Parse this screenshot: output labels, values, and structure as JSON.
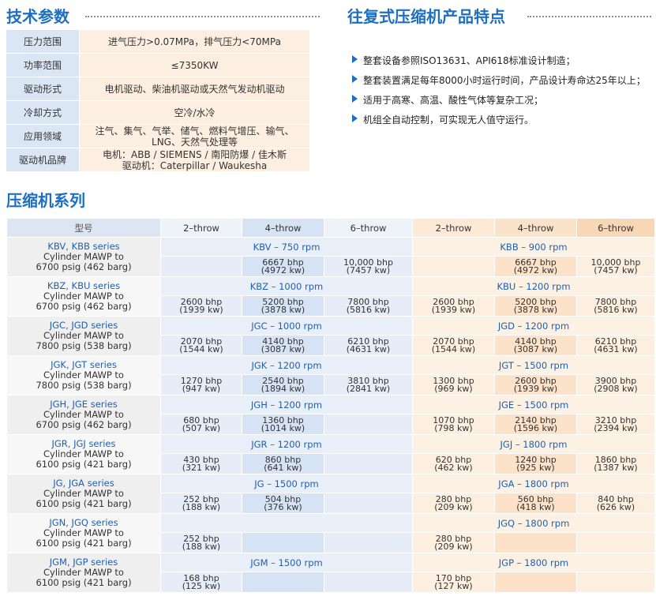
{
  "spec": {
    "title": "技术参数",
    "rows": [
      [
        "压力范围",
        [
          "进气压力>0.07MPa，排气压力<70MPa"
        ]
      ],
      [
        "功率范围",
        [
          "≤7350KW"
        ]
      ],
      [
        "驱动形式",
        [
          "电机驱动、柴油机驱动或天然气发动机驱动"
        ]
      ],
      [
        "冷却方式",
        [
          "空冷/水冷"
        ]
      ],
      [
        "应用领域",
        [
          "注气、集气、气举、储气、燃料气增压、输气、",
          "LNG、天然气处理等"
        ]
      ],
      [
        "驱动机品牌",
        [
          "电机：ABB / SIEMENS / 南阳防爆 / 佳木斯",
          "驱动机：Caterpillar / Waukesha"
        ]
      ]
    ]
  },
  "features": {
    "title": "往复式压缩机产品特点",
    "items": [
      "整套设备参照ISO13631、API618标准设计制造；",
      "整套装置满足每年8000小时运行时间，产品设计寿命达25年以上；",
      "适用于高寒、高温、酸性气体等复杂工况；",
      "机组全自动控制，可实现无人值守运行。"
    ]
  },
  "series": {
    "title": "压缩机系列",
    "header": [
      "型号",
      "2–throw",
      "4–throw",
      "6–throw",
      "2–throw",
      "4–throw",
      "6–throw"
    ],
    "rows": [
      {
        "name": [
          "KBV, KBB series",
          "Cylinder MAWP to",
          "6700 psig (462 barg)"
        ],
        "left": "KBV – 750 rpm",
        "right": "KBB – 900 rpm",
        "cells": [
          null,
          [
            "6667 bhp",
            "(4972 kw)"
          ],
          [
            "10,000 bhp",
            "(7457 kw)"
          ],
          null,
          [
            "6667 bhp",
            "(4972 kw)"
          ],
          [
            "10,000 bhp",
            "(7457 kw)"
          ]
        ]
      },
      {
        "name": [
          "KBZ, KBU series",
          "Cylinder MAWP to",
          "6700 psig (462 barg)"
        ],
        "left": "KBZ – 1000 rpm",
        "right": "KBU – 1200 rpm",
        "cells": [
          [
            "2600 bhp",
            "(1939 kw)"
          ],
          [
            "5200 bhp",
            "(3878 kw)"
          ],
          [
            "7800 bhp",
            "(5816 kw)"
          ],
          [
            "2600 bhp",
            "(1939 kw)"
          ],
          [
            "5200 bhp",
            "(3878 kw)"
          ],
          [
            "7800 bhp",
            "(5816 kw)"
          ]
        ]
      },
      {
        "name": [
          "JGC, JGD series",
          "Cylinder MAWP to",
          "7800 psig (538 barg)"
        ],
        "left": "JGC – 1000 rpm",
        "right": "JGD – 1200 rpm",
        "cells": [
          [
            "2070 bhp",
            "(1544 kw)"
          ],
          [
            "4140 bhp",
            "(3087 kw)"
          ],
          [
            "6210 bhp",
            "(4631 kw)"
          ],
          [
            "2070 bhp",
            "(1544 kw)"
          ],
          [
            "4140 bhp",
            "(3087 kw)"
          ],
          [
            "6210 bhp",
            "(4631 kw)"
          ]
        ]
      },
      {
        "name": [
          "JGK, JGT series",
          "Cylinder MAWP to",
          "7800 psig (538 barg)"
        ],
        "left": "JGK – 1200 rpm",
        "right": "JGT – 1500 rpm",
        "cells": [
          [
            "1270 bhp",
            "(947 kw)"
          ],
          [
            "2540 bhp",
            "(1894 kw)"
          ],
          [
            "3810 bhp",
            "(2841 kw)"
          ],
          [
            "1300 bhp",
            "(969 kw)"
          ],
          [
            "2600 bhp",
            "(1939 kw)"
          ],
          [
            "3900 bhp",
            "(2908 kw)"
          ]
        ]
      },
      {
        "name": [
          "JGH, JGE series",
          "Cylinder MAWP to",
          "6700 psig (462 barg)"
        ],
        "left": "JGH – 1200 rpm",
        "right": "JGE – 1500 rpm",
        "cells": [
          [
            "680 bhp",
            "(507 kw)"
          ],
          [
            "1360 bhp",
            "(1014 kw)"
          ],
          null,
          [
            "1070 bhp",
            "(798 kw)"
          ],
          [
            "2140 bhp",
            "(1596 kw)"
          ],
          [
            "3210 bhp",
            "(2394 kw)"
          ]
        ]
      },
      {
        "name": [
          "JGR, JGJ series",
          "Cylinder MAWP to",
          "6100 psig (421 barg)"
        ],
        "left": "JGR – 1200 rpm",
        "right": "JGJ – 1800 rpm",
        "cells": [
          [
            "430 bhp",
            "(321 kw)"
          ],
          [
            "860 bhp",
            "(641 kw)"
          ],
          null,
          [
            "620 bhp",
            "(462 kw)"
          ],
          [
            "1240 bhp",
            "(925 kw)"
          ],
          [
            "1860 bhp",
            "(1387 kw)"
          ]
        ]
      },
      {
        "name": [
          "JG, JGA series",
          "Cylinder MAWP to",
          "6100 psig (421 barg)"
        ],
        "left": "JG – 1500 rpm",
        "right": "JGA – 1800 rpm",
        "cells": [
          [
            "252 bhp",
            "(188 kw)"
          ],
          [
            "504 bhp",
            "(376 kw)"
          ],
          null,
          [
            "280 bhp",
            "(209 kw)"
          ],
          [
            "560 bhp",
            "(418 kw)"
          ],
          [
            "840 bhp",
            "(626 kw)"
          ]
        ]
      },
      {
        "name": [
          "JGN, JGQ series",
          "Cylinder MAWP to",
          "6100 psig (421 barg)"
        ],
        "left": null,
        "right": "JGQ – 1800 rpm",
        "cells": [
          [
            "252 bhp",
            "(188 kw)"
          ],
          null,
          null,
          [
            "280 bhp",
            "(209 kw)"
          ],
          null,
          null
        ]
      },
      {
        "name": [
          "JGM, JGP series",
          "Cylinder MAWP to",
          "6100 psig (421 barg)"
        ],
        "left": "JGM – 1500 rpm",
        "right": "JGP – 1800 rpm",
        "cells": [
          [
            "168 bhp",
            "(125 kw)"
          ],
          null,
          null,
          [
            "170 bhp",
            "(127 kw)"
          ],
          null,
          null
        ]
      }
    ]
  }
}
